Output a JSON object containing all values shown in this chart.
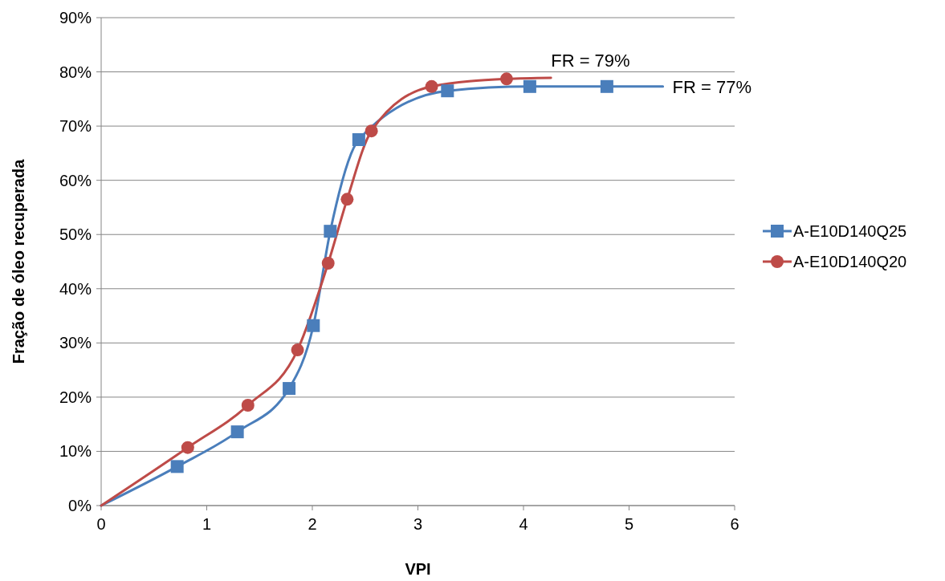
{
  "chart_data": {
    "type": "line",
    "xlabel": "VPI",
    "ylabel": "Fração de óleo recuperada",
    "xlim": [
      0,
      6
    ],
    "xticks": [
      0,
      1,
      2,
      3,
      4,
      5,
      6
    ],
    "ylim": [
      0,
      90
    ],
    "yticks": [
      {
        "value": 0,
        "label": "0%"
      },
      {
        "value": 10,
        "label": "10%"
      },
      {
        "value": 20,
        "label": "20%"
      },
      {
        "value": 30,
        "label": "30%"
      },
      {
        "value": 40,
        "label": "40%"
      },
      {
        "value": 50,
        "label": "50%"
      },
      {
        "value": 60,
        "label": "60%"
      },
      {
        "value": 70,
        "label": "70%"
      },
      {
        "value": 80,
        "label": "80%"
      },
      {
        "value": 90,
        "label": "90%"
      }
    ],
    "grid": "y",
    "legend": "right",
    "series": [
      {
        "color": "#4a7ebb",
        "marker": "none",
        "x": [
          0,
          0.72,
          1.29,
          1.78,
          2.01,
          2.17,
          2.44,
          3.28,
          4.06,
          4.79,
          5.32
        ],
        "values": [
          0,
          7.2,
          13.6,
          21.6,
          33.2,
          50.6,
          67.5,
          76.5,
          77.3,
          77.3,
          77.3
        ]
      },
      {
        "color": "#be4b48",
        "marker": "none",
        "x": [
          0,
          0.82,
          1.39,
          1.86,
          2.15,
          2.33,
          2.56,
          3.13,
          3.84,
          4.26
        ],
        "values": [
          0,
          10.7,
          18.5,
          28.7,
          44.7,
          56.5,
          69.1,
          77.3,
          78.7,
          78.9
        ]
      },
      {
        "type": "scatter",
        "name": "A-E10D140Q25",
        "color": "#4a7ebb",
        "marker": "square",
        "x": [
          0.72,
          1.29,
          1.78,
          2.01,
          2.17,
          2.44,
          3.28,
          4.06,
          4.79
        ],
        "values": [
          7.2,
          13.6,
          21.6,
          33.2,
          50.6,
          67.5,
          76.5,
          77.3,
          77.3
        ]
      },
      {
        "type": "scatter",
        "name": "A-E10D140Q20",
        "color": "#be4b48",
        "marker": "circle",
        "x": [
          0.82,
          1.39,
          1.86,
          2.15,
          2.33,
          2.56,
          3.13,
          3.84
        ],
        "values": [
          10.7,
          18.5,
          28.7,
          44.7,
          56.5,
          69.1,
          77.3,
          78.7
        ]
      }
    ],
    "annotations": [
      {
        "text": "FR = 79%",
        "x": 4.26,
        "y": 78.9
      },
      {
        "text": "FR = 77%",
        "x": 5.32,
        "y": 77.3
      }
    ]
  }
}
